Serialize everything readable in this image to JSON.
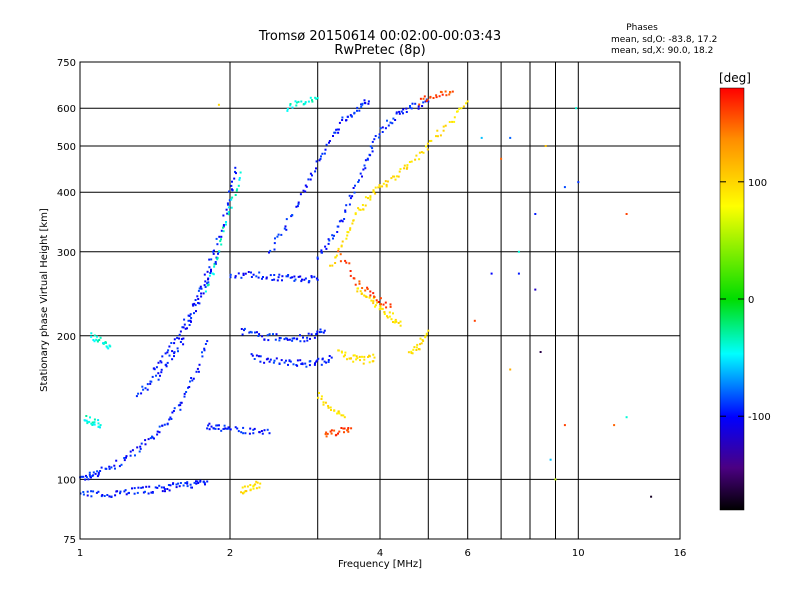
{
  "chart_data": {
    "type": "scatter",
    "title": "Tromsø 20150614 00:02:00-00:03:43",
    "subtitle": "RwPretec (8p)",
    "xlabel": "Frequency [MHz]",
    "ylabel": "Stationary phase Virtual Height [km]",
    "x_scale": "log",
    "y_scale": "log",
    "xlim": [
      1,
      16
    ],
    "ylim": [
      75,
      750
    ],
    "x_ticks": [
      1,
      2,
      4,
      6,
      10,
      16
    ],
    "x_gridlines": [
      1,
      2,
      3,
      4,
      5,
      6,
      7,
      8,
      9,
      10,
      16
    ],
    "y_ticks": [
      75,
      100,
      200,
      300,
      400,
      500,
      600,
      750
    ],
    "grid": true,
    "phases": {
      "heading": "Phases",
      "line_o": "mean, sd,O:  -83.8, 17.2",
      "line_x": "mean, sd,X:  90.0, 18.2"
    },
    "colorbar": {
      "unit_label": "[deg]",
      "min": -180,
      "max": 180,
      "ticks": [
        100,
        0,
        -100
      ],
      "colors": [
        "#ff0000",
        "#ff8c00",
        "#ffff00",
        "#00dd00",
        "#00ffff",
        "#0000ff",
        "#4b0082",
        "#000000"
      ]
    },
    "series": [
      {
        "color_value": -95,
        "traces": [
          {
            "f": [
              1.0,
              1.05,
              1.1,
              1.2,
              1.3,
              1.4,
              1.5,
              1.6,
              1.7,
              1.8
            ],
            "h": [
              100,
              102,
              104,
              108,
              115,
              122,
              132,
              145,
              165,
              195
            ]
          },
          {
            "f": [
              1.0,
              1.1,
              1.2,
              1.3,
              1.4,
              1.5,
              1.6,
              1.7,
              1.8
            ],
            "h": [
              93,
              93,
              94,
              95,
              95,
              96,
              97,
              98,
              99
            ]
          },
          {
            "f": [
              1.4,
              1.5,
              1.6,
              1.7,
              1.8,
              1.9,
              2.0,
              2.05
            ],
            "h": [
              170,
              185,
              205,
              235,
              270,
              320,
              390,
              450
            ]
          },
          {
            "f": [
              1.3,
              1.4,
              1.5,
              1.6,
              1.7,
              1.8,
              1.9
            ],
            "h": [
              150,
              160,
              175,
              195,
              225,
              260,
              300
            ]
          },
          {
            "f": [
              2.0,
              2.2,
              2.4,
              2.6,
              2.8,
              3.0
            ],
            "h": [
              270,
              268,
              266,
              265,
              263,
              262
            ]
          },
          {
            "f": [
              2.1,
              2.3,
              2.5,
              2.7,
              2.9,
              3.1
            ],
            "h": [
              205,
              200,
              198,
              197,
              199,
              205
            ]
          },
          {
            "f": [
              2.2,
              2.4,
              2.6,
              2.8,
              3.0,
              3.2
            ],
            "h": [
              180,
              178,
              176,
              175,
              176,
              180
            ]
          },
          {
            "f": [
              2.4,
              2.6,
              2.8,
              3.0,
              3.2,
              3.4,
              3.6,
              3.8
            ],
            "h": [
              300,
              340,
              400,
              460,
              520,
              570,
              600,
              620
            ]
          },
          {
            "f": [
              3.0,
              3.2,
              3.4,
              3.6,
              3.8,
              4.0,
              4.3,
              4.6,
              5.0
            ],
            "h": [
              290,
              320,
              360,
              420,
              480,
              540,
              580,
              600,
              620
            ]
          },
          {
            "f": [
              1.8,
              1.9,
              2.0,
              2.2,
              2.4
            ],
            "h": [
              130,
              128,
              127,
              126,
              125
            ]
          }
        ]
      },
      {
        "color_value": -40,
        "traces": [
          {
            "f": [
              1.05,
              1.1,
              1.15
            ],
            "h": [
              200,
              195,
              190
            ]
          },
          {
            "f": [
              1.02,
              1.06,
              1.1
            ],
            "h": [
              135,
              132,
              130
            ]
          },
          {
            "f": [
              1.8,
              1.9,
              2.0,
              2.1
            ],
            "h": [
              250,
              300,
              370,
              440
            ]
          },
          {
            "f": [
              2.6,
              2.8,
              3.0
            ],
            "h": [
              600,
              620,
              630
            ]
          }
        ]
      },
      {
        "color_value": 95,
        "traces": [
          {
            "f": [
              3.2,
              3.4,
              3.6,
              3.8,
              4.0,
              4.3,
              4.6,
              5.0,
              5.5,
              6.0
            ],
            "h": [
              280,
              320,
              360,
              390,
              410,
              430,
              460,
              500,
              560,
              620
            ]
          },
          {
            "f": [
              3.6,
              3.8,
              4.0,
              4.2,
              4.4
            ],
            "h": [
              250,
              240,
              230,
              220,
              210
            ]
          },
          {
            "f": [
              3.3,
              3.5,
              3.7,
              3.9
            ],
            "h": [
              185,
              180,
              178,
              180
            ]
          },
          {
            "f": [
              4.6,
              4.8,
              5.0
            ],
            "h": [
              185,
              190,
              205
            ]
          },
          {
            "f": [
              3.0,
              3.2,
              3.4
            ],
            "h": [
              150,
              140,
              135
            ]
          },
          {
            "f": [
              2.1,
              2.2,
              2.3
            ],
            "h": [
              95,
              96,
              98
            ]
          }
        ]
      },
      {
        "color_value": 160,
        "traces": [
          {
            "f": [
              3.3,
              3.6,
              3.9,
              4.2
            ],
            "h": [
              300,
              260,
              240,
              230
            ]
          },
          {
            "f": [
              3.1,
              3.3,
              3.5
            ],
            "h": [
              125,
              126,
              128
            ]
          },
          {
            "f": [
              4.8,
              5.2,
              5.6
            ],
            "h": [
              620,
              640,
              650
            ]
          }
        ]
      }
    ],
    "scattered_points": [
      {
        "f": 6.4,
        "h": 520,
        "v": -60
      },
      {
        "f": 7.0,
        "h": 470,
        "v": 150
      },
      {
        "f": 7.3,
        "h": 520,
        "v": -80
      },
      {
        "f": 8.6,
        "h": 500,
        "v": 110
      },
      {
        "f": 9.9,
        "h": 600,
        "v": -40
      },
      {
        "f": 9.4,
        "h": 410,
        "v": -85
      },
      {
        "f": 10.0,
        "h": 420,
        "v": -90
      },
      {
        "f": 8.2,
        "h": 360,
        "v": -95
      },
      {
        "f": 12.5,
        "h": 360,
        "v": 160
      },
      {
        "f": 7.6,
        "h": 300,
        "v": -40
      },
      {
        "f": 6.7,
        "h": 270,
        "v": -100
      },
      {
        "f": 7.6,
        "h": 270,
        "v": -95
      },
      {
        "f": 8.2,
        "h": 250,
        "v": -120
      },
      {
        "f": 6.2,
        "h": 215,
        "v": 160
      },
      {
        "f": 8.4,
        "h": 185,
        "v": -160
      },
      {
        "f": 7.3,
        "h": 170,
        "v": 120
      },
      {
        "f": 9.4,
        "h": 130,
        "v": 160
      },
      {
        "f": 12.5,
        "h": 135,
        "v": -40
      },
      {
        "f": 11.8,
        "h": 130,
        "v": 150
      },
      {
        "f": 9.0,
        "h": 100,
        "v": 60
      },
      {
        "f": 8.8,
        "h": 110,
        "v": -60
      },
      {
        "f": 14.0,
        "h": 92,
        "v": -170
      },
      {
        "f": 1.9,
        "h": 610,
        "v": 100
      }
    ]
  }
}
